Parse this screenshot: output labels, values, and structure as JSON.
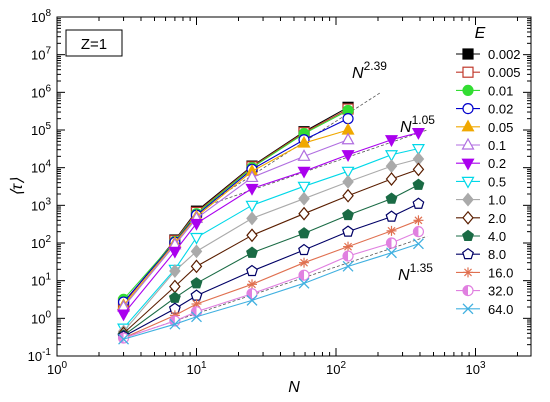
{
  "chart_data": {
    "type": "line",
    "title": "",
    "panel_label": "Z=1",
    "xlabel": "N",
    "ylabel": "⟨τ⟩",
    "x_scale": "log",
    "y_scale": "log",
    "xlim": [
      1,
      2500
    ],
    "ylim": [
      0.1,
      100000000
    ],
    "x_ticks": [
      {
        "value": 1,
        "mant": "10",
        "exp": "0"
      },
      {
        "value": 10,
        "mant": "10",
        "exp": "1"
      },
      {
        "value": 100,
        "mant": "10",
        "exp": "2"
      },
      {
        "value": 1000,
        "mant": "10",
        "exp": "3"
      }
    ],
    "y_ticks": [
      {
        "value": 0.1,
        "mant": "10",
        "exp": "-1"
      },
      {
        "value": 1,
        "mant": "10",
        "exp": "0"
      },
      {
        "value": 10,
        "mant": "10",
        "exp": "1"
      },
      {
        "value": 100,
        "mant": "10",
        "exp": "2"
      },
      {
        "value": 1000,
        "mant": "10",
        "exp": "3"
      },
      {
        "value": 10000,
        "mant": "10",
        "exp": "4"
      },
      {
        "value": 100000,
        "mant": "10",
        "exp": "5"
      },
      {
        "value": 1000000,
        "mant": "10",
        "exp": "6"
      },
      {
        "value": 10000000,
        "mant": "10",
        "exp": "7"
      },
      {
        "value": 100000000,
        "mant": "10",
        "exp": "8"
      }
    ],
    "grid": false,
    "legend_title": "E",
    "legend_position": "right",
    "series": [
      {
        "name": "0.002",
        "color": "#000000",
        "marker": "square",
        "filled": true,
        "x": [
          3,
          7,
          10,
          25,
          59,
          122
        ],
        "y": [
          2.5,
          120,
          700,
          11000,
          90000,
          400000
        ]
      },
      {
        "name": "0.005",
        "color": "#c0392b",
        "marker": "square",
        "filled": false,
        "x": [
          3,
          7,
          10,
          25,
          59,
          122
        ],
        "y": [
          2.5,
          115,
          650,
          10500,
          85000,
          360000
        ]
      },
      {
        "name": "0.01",
        "color": "#33dd33",
        "marker": "circle",
        "filled": true,
        "x": [
          3,
          7,
          10,
          25,
          59,
          122
        ],
        "y": [
          3.2,
          110,
          600,
          10000,
          80000,
          330000
        ]
      },
      {
        "name": "0.02",
        "color": "#0000cc",
        "marker": "circle",
        "filled": false,
        "x": [
          3,
          7,
          10,
          25,
          59,
          122
        ],
        "y": [
          2.7,
          105,
          550,
          9000,
          55000,
          200000
        ]
      },
      {
        "name": "0.05",
        "color": "#f0a800",
        "marker": "triangle-up",
        "filled": true,
        "x": [
          3,
          7,
          10,
          25,
          59,
          122
        ],
        "y": [
          2.2,
          100,
          500,
          8000,
          45000,
          100000
        ]
      },
      {
        "name": "0.1",
        "color": "#b06ee0",
        "marker": "triangle-up",
        "filled": false,
        "x": [
          3,
          7,
          10,
          25,
          59,
          122
        ],
        "y": [
          2.0,
          90,
          450,
          5500,
          20000,
          55000
        ]
      },
      {
        "name": "0.2",
        "color": "#aa00ee",
        "marker": "triangle-down",
        "filled": true,
        "x": [
          3,
          7,
          10,
          25,
          59,
          122,
          250,
          390
        ],
        "y": [
          1.3,
          60,
          330,
          2800,
          8000,
          22000,
          55000,
          85000
        ]
      },
      {
        "name": "0.5",
        "color": "#00d8e8",
        "marker": "triangle-down",
        "filled": false,
        "x": [
          3,
          7,
          10,
          25,
          59,
          122,
          250,
          390
        ],
        "y": [
          0.55,
          20,
          140,
          1000,
          3200,
          8000,
          22000,
          32000
        ]
      },
      {
        "name": "1.0",
        "color": "#aaaaaa",
        "marker": "diamond",
        "filled": true,
        "x": [
          3,
          7,
          10,
          25,
          59,
          122,
          250,
          390
        ],
        "y": [
          0.45,
          18,
          60,
          450,
          1500,
          4200,
          11000,
          17000
        ]
      },
      {
        "name": "2.0",
        "color": "#5a1e00",
        "marker": "diamond",
        "filled": false,
        "x": [
          3,
          7,
          10,
          25,
          59,
          122,
          250,
          390
        ],
        "y": [
          0.4,
          7,
          24,
          160,
          600,
          1800,
          5000,
          9000
        ]
      },
      {
        "name": "4.0",
        "color": "#1a6b45",
        "marker": "pentagon",
        "filled": true,
        "x": [
          3,
          7,
          10,
          25,
          59,
          122,
          250,
          390
        ],
        "y": [
          0.35,
          3.5,
          8.5,
          55,
          180,
          550,
          1500,
          3500
        ]
      },
      {
        "name": "8.0",
        "color": "#000066",
        "marker": "pentagon",
        "filled": false,
        "x": [
          3,
          7,
          10,
          25,
          59,
          122,
          250,
          390
        ],
        "y": [
          0.33,
          1.8,
          4.0,
          18,
          65,
          200,
          500,
          1100
        ]
      },
      {
        "name": "16.0",
        "color": "#e07050",
        "marker": "star",
        "filled": false,
        "x": [
          3,
          7,
          10,
          25,
          59,
          122,
          250,
          390
        ],
        "y": [
          0.3,
          1.2,
          2.4,
          8,
          30,
          80,
          210,
          400
        ]
      },
      {
        "name": "32.0",
        "color": "#e080e0",
        "marker": "half-circle",
        "filled": true,
        "x": [
          3,
          7,
          10,
          25,
          59,
          122,
          250,
          390
        ],
        "y": [
          0.3,
          0.85,
          1.5,
          4.5,
          14,
          45,
          100,
          200
        ]
      },
      {
        "name": "64.0",
        "color": "#40b0e0",
        "marker": "x",
        "filled": false,
        "x": [
          3,
          7,
          10,
          25,
          59,
          122,
          250,
          390
        ],
        "y": [
          0.28,
          0.7,
          1.1,
          3.0,
          8.5,
          24,
          55,
          95
        ]
      }
    ],
    "reference_lines": [
      {
        "label_base": "N",
        "label_exp": "2.39",
        "x": [
          10,
          210
        ],
        "y": [
          700,
          1000000
        ]
      },
      {
        "label_base": "N",
        "label_exp": "1.05",
        "x": [
          10,
          450
        ],
        "y": [
          800,
          100000
        ]
      },
      {
        "label_base": "N",
        "label_exp": "1.35",
        "x": [
          3,
          450
        ],
        "y": [
          0.3,
          150
        ]
      }
    ]
  }
}
